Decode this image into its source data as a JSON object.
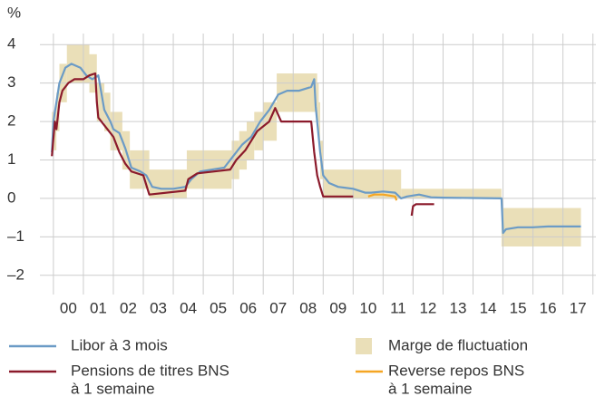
{
  "chart_data": {
    "type": "line",
    "y_label": "%",
    "xlim": [
      1999.55,
      2018.1
    ],
    "ylim": [
      -2.5,
      4.5
    ],
    "yticks": [
      {
        "value": -2,
        "label": "–2"
      },
      {
        "value": -1,
        "label": "–1"
      },
      0,
      1,
      2,
      3,
      4
    ],
    "xticks": [
      {
        "value": 2000.5,
        "label": "00"
      },
      {
        "value": 2001.5,
        "label": "01"
      },
      {
        "value": 2002.5,
        "label": "02"
      },
      {
        "value": 2003.5,
        "label": "03"
      },
      {
        "value": 2004.5,
        "label": "04"
      },
      {
        "value": 2005.5,
        "label": "05"
      },
      {
        "value": 2006.5,
        "label": "06"
      },
      {
        "value": 2007.5,
        "label": "07"
      },
      {
        "value": 2008.5,
        "label": "08"
      },
      {
        "value": 2009.5,
        "label": "09"
      },
      {
        "value": 2010.5,
        "label": "10"
      },
      {
        "value": 2011.5,
        "label": "11"
      },
      {
        "value": 2012.5,
        "label": "12"
      },
      {
        "value": 2013.5,
        "label": "13"
      },
      {
        "value": 2014.5,
        "label": "14"
      },
      {
        "value": 2015.5,
        "label": "15"
      },
      {
        "value": 2016.5,
        "label": "16"
      },
      {
        "value": 2017.5,
        "label": "17"
      }
    ],
    "xgrid": [
      2000,
      2001,
      2002,
      2003,
      2004,
      2005,
      2006,
      2007,
      2008,
      2009,
      2010,
      2011,
      2012,
      2013,
      2014,
      2015,
      2016,
      2017,
      2018
    ],
    "grid": true,
    "band": {
      "name": "Marge de fluctuation",
      "color": "#eadfb8",
      "start": [
        1999.95,
        2000.1,
        2000.2,
        2000.45,
        2001.2,
        2001.45,
        2001.7,
        2001.9,
        2002.3,
        2002.55,
        2003.2,
        2004.45,
        2005.95,
        2006.2,
        2006.45,
        2006.7,
        2007.0,
        2007.45,
        2008.8,
        2008.85,
        2008.9,
        2009.0,
        2011.6,
        2014.95
      ],
      "end": [
        2000.1,
        2000.2,
        2000.45,
        2001.2,
        2001.45,
        2001.7,
        2001.9,
        2002.3,
        2002.55,
        2003.2,
        2004.45,
        2005.95,
        2006.2,
        2006.45,
        2006.7,
        2007.0,
        2007.45,
        2008.8,
        2008.85,
        2008.9,
        2009.0,
        2011.6,
        2014.95,
        2017.6
      ],
      "low": [
        1.25,
        1.75,
        2.5,
        3.0,
        2.75,
        2.0,
        1.75,
        1.25,
        0.75,
        0.25,
        0,
        0.25,
        0.5,
        0.75,
        1.0,
        1.25,
        1.5,
        2.25,
        2.0,
        1.5,
        0.5,
        0,
        0,
        -1.25
      ],
      "high": [
        2.25,
        2.75,
        3.5,
        4.0,
        3.75,
        3.0,
        2.75,
        2.25,
        1.75,
        1.25,
        0.75,
        1.25,
        1.5,
        1.75,
        2.0,
        2.25,
        2.5,
        3.25,
        3.0,
        2.5,
        1.5,
        0.75,
        0.25,
        -0.25
      ]
    },
    "series": [
      {
        "name": [
          "Libor à 3 mois"
        ],
        "color": "#6b9bc6",
        "x": [
          1999.95,
          2000.0,
          2000.1,
          2000.2,
          2000.4,
          2000.6,
          2000.9,
          2001.1,
          2001.3,
          2001.5,
          2001.7,
          2001.9,
          2002.0,
          2002.2,
          2002.4,
          2002.6,
          2002.9,
          2003.1,
          2003.3,
          2003.6,
          2004.0,
          2004.4,
          2004.6,
          2004.9,
          2005.3,
          2005.7,
          2006.0,
          2006.3,
          2006.6,
          2006.9,
          2007.2,
          2007.5,
          2007.8,
          2008.2,
          2008.6,
          2008.7,
          2008.75,
          2008.9,
          2009.0,
          2009.2,
          2009.5,
          2010.0,
          2010.4,
          2010.6,
          2011.0,
          2011.4,
          2011.6,
          2011.8,
          2012.2,
          2012.6,
          2013.0,
          2014.0,
          2014.95,
          2015.0,
          2015.1,
          2015.5,
          2016.0,
          2016.5,
          2017.0,
          2017.6
        ],
        "values": [
          1.2,
          2.0,
          2.5,
          3.0,
          3.4,
          3.5,
          3.4,
          3.2,
          3.1,
          3.2,
          2.3,
          2.0,
          1.8,
          1.7,
          1.3,
          0.8,
          0.7,
          0.6,
          0.3,
          0.25,
          0.25,
          0.3,
          0.5,
          0.7,
          0.75,
          0.8,
          1.1,
          1.4,
          1.6,
          2.0,
          2.3,
          2.7,
          2.8,
          2.8,
          2.9,
          3.1,
          2.4,
          1.2,
          0.6,
          0.4,
          0.3,
          0.25,
          0.15,
          0.15,
          0.18,
          0.15,
          0.0,
          0.05,
          0.1,
          0.03,
          0.02,
          0.01,
          0.0,
          -0.9,
          -0.8,
          -0.75,
          -0.75,
          -0.73,
          -0.73,
          -0.73
        ]
      },
      {
        "name": [
          "Pensions de titres BNS",
          "à 1 semaine"
        ],
        "color": "#8b1a2b",
        "x": [
          1999.95,
          2000.05,
          2000.1,
          2000.2,
          2000.3,
          2000.5,
          2000.7,
          2001.0,
          2001.2,
          2001.4,
          2001.45,
          2001.5,
          2001.8,
          2002.0,
          2002.2,
          2002.4,
          2002.6,
          2003.0,
          2003.2,
          2004.4,
          2004.5,
          2004.8,
          2005.9,
          2006.1,
          2006.4,
          2006.6,
          2006.8,
          2007.2,
          2007.4,
          2007.6,
          2008.6,
          2008.7,
          2008.8,
          2008.9,
          2009.0,
          2010.0,
          2010.05,
          2011.95,
          2012.0,
          2012.1,
          2012.7
        ],
        "values": [
          1.1,
          2.0,
          1.8,
          2.5,
          2.8,
          3.0,
          3.1,
          3.1,
          3.2,
          3.25,
          2.5,
          2.1,
          1.8,
          1.6,
          1.2,
          0.9,
          0.7,
          0.6,
          0.1,
          0.2,
          0.5,
          0.65,
          0.75,
          1.0,
          1.25,
          1.5,
          1.75,
          2.0,
          2.35,
          2.0,
          2.0,
          1.2,
          0.6,
          0.3,
          0.05,
          0.05,
          null,
          -0.45,
          -0.2,
          -0.15,
          -0.15
        ]
      },
      {
        "name": [
          "Reverse repos BNS",
          "à 1 semaine"
        ],
        "color": "#f5a623",
        "x": [
          2010.5,
          2010.7,
          2011.0,
          2011.4,
          2011.45
        ],
        "values": [
          0.05,
          0.1,
          0.1,
          0.05,
          -0.05
        ]
      }
    ]
  }
}
